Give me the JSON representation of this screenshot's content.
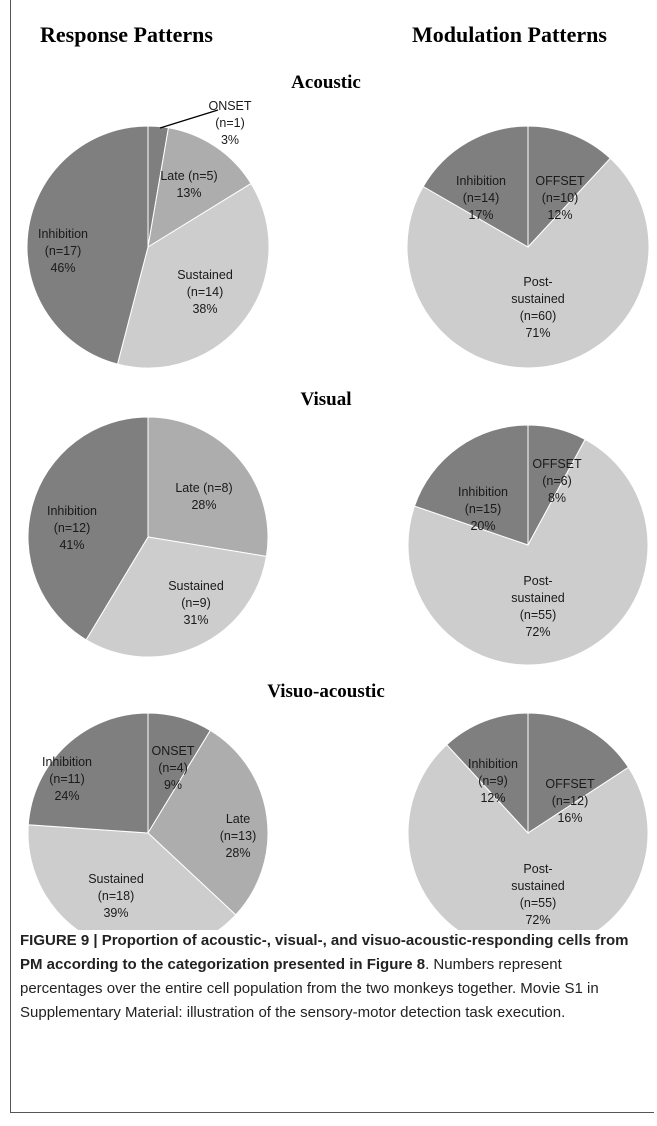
{
  "headers": {
    "left": "Response Patterns",
    "right": "Modulation Patterns"
  },
  "colors": {
    "dark": "#7f7f7f",
    "mid": "#adadad",
    "light": "#cdcdcd",
    "stroke": "#ffffff"
  },
  "chart_data": [
    {
      "type": "pie",
      "section": "Acoustic",
      "title": "Acoustic",
      "column": "Response Patterns",
      "slices": [
        {
          "name": "ONSET",
          "n": 1,
          "percent": 3,
          "tone": "dark",
          "label": [
            "ONSET",
            "(n=1)",
            "3%"
          ]
        },
        {
          "name": "Late",
          "n": 5,
          "percent": 13,
          "tone": "mid",
          "label": [
            "Late (n=5)",
            "13%"
          ]
        },
        {
          "name": "Sustained",
          "n": 14,
          "percent": 38,
          "tone": "light",
          "label": [
            "Sustained",
            "(n=14)",
            "38%"
          ]
        },
        {
          "name": "Inhibition",
          "n": 17,
          "percent": 46,
          "tone": "dark",
          "label": [
            "Inhibition",
            "(n=17)",
            "46%"
          ]
        }
      ]
    },
    {
      "type": "pie",
      "section": "Acoustic",
      "column": "Modulation Patterns",
      "slices": [
        {
          "name": "OFFSET",
          "n": 10,
          "percent": 12,
          "tone": "dark",
          "label": [
            "OFFSET",
            "(n=10)",
            "12%"
          ]
        },
        {
          "name": "Post-sustained",
          "n": 60,
          "percent": 71,
          "tone": "light",
          "label": [
            "Post-",
            "sustained",
            "(n=60)",
            "71%"
          ]
        },
        {
          "name": "Inhibition",
          "n": 14,
          "percent": 17,
          "tone": "dark",
          "label": [
            "Inhibition",
            "(n=14)",
            "17%"
          ]
        }
      ]
    },
    {
      "type": "pie",
      "section": "Visual",
      "title": "Visual",
      "column": "Response Patterns",
      "slices": [
        {
          "name": "Late",
          "n": 8,
          "percent": 28,
          "tone": "mid",
          "label": [
            "Late (n=8)",
            "28%"
          ]
        },
        {
          "name": "Sustained",
          "n": 9,
          "percent": 31,
          "tone": "light",
          "label": [
            "Sustained",
            "(n=9)",
            "31%"
          ]
        },
        {
          "name": "Inhibition",
          "n": 12,
          "percent": 41,
          "tone": "dark",
          "label": [
            "Inhibition",
            "(n=12)",
            "41%"
          ]
        }
      ]
    },
    {
      "type": "pie",
      "section": "Visual",
      "column": "Modulation Patterns",
      "slices": [
        {
          "name": "OFFSET",
          "n": 6,
          "percent": 8,
          "tone": "dark",
          "label": [
            "OFFSET",
            "(n=6)",
            "8%"
          ]
        },
        {
          "name": "Post-sustained",
          "n": 55,
          "percent": 72,
          "tone": "light",
          "label": [
            "Post-",
            "sustained",
            "(n=55)",
            "72%"
          ]
        },
        {
          "name": "Inhibition",
          "n": 15,
          "percent": 20,
          "tone": "dark",
          "label": [
            "Inhibition",
            "(n=15)",
            "20%"
          ]
        }
      ]
    },
    {
      "type": "pie",
      "section": "Visuo-acoustic",
      "title": "Visuo-acoustic",
      "column": "Response Patterns",
      "slices": [
        {
          "name": "ONSET",
          "n": 4,
          "percent": 9,
          "tone": "dark",
          "label": [
            "ONSET",
            "(n=4)",
            "9%"
          ]
        },
        {
          "name": "Late",
          "n": 13,
          "percent": 28,
          "tone": "mid",
          "label": [
            "Late",
            "(n=13)",
            "28%"
          ]
        },
        {
          "name": "Sustained",
          "n": 18,
          "percent": 39,
          "tone": "light",
          "label": [
            "Sustained",
            "(n=18)",
            "39%"
          ]
        },
        {
          "name": "Inhibition",
          "n": 11,
          "percent": 24,
          "tone": "dark",
          "label": [
            "Inhibition",
            "(n=11)",
            "24%"
          ]
        }
      ]
    },
    {
      "type": "pie",
      "section": "Visuo-acoustic",
      "column": "Modulation Patterns",
      "slices": [
        {
          "name": "OFFSET",
          "n": 12,
          "percent": 16,
          "tone": "dark",
          "label": [
            "OFFSET",
            "(n=12)",
            "16%"
          ]
        },
        {
          "name": "Post-sustained",
          "n": 55,
          "percent": 72,
          "tone": "light",
          "label": [
            "Post-",
            "sustained",
            "(n=55)",
            "72%"
          ]
        },
        {
          "name": "Inhibition",
          "n": 9,
          "percent": 12,
          "tone": "dark",
          "label": [
            "Inhibition",
            "(n=9)",
            "12%"
          ]
        }
      ]
    }
  ],
  "caption": {
    "bold_lead": "FIGURE 9 | Proportion of acoustic-, visual-, and visuo-acoustic-responding cells from PM according to the categorization presented in",
    "figure_ref": "Figure 8",
    "body": ". Numbers represent percentages over the entire cell population from the two monkeys together. Movie S1 in Supplementary Material: illustration of the sensory-motor detection task execution."
  }
}
